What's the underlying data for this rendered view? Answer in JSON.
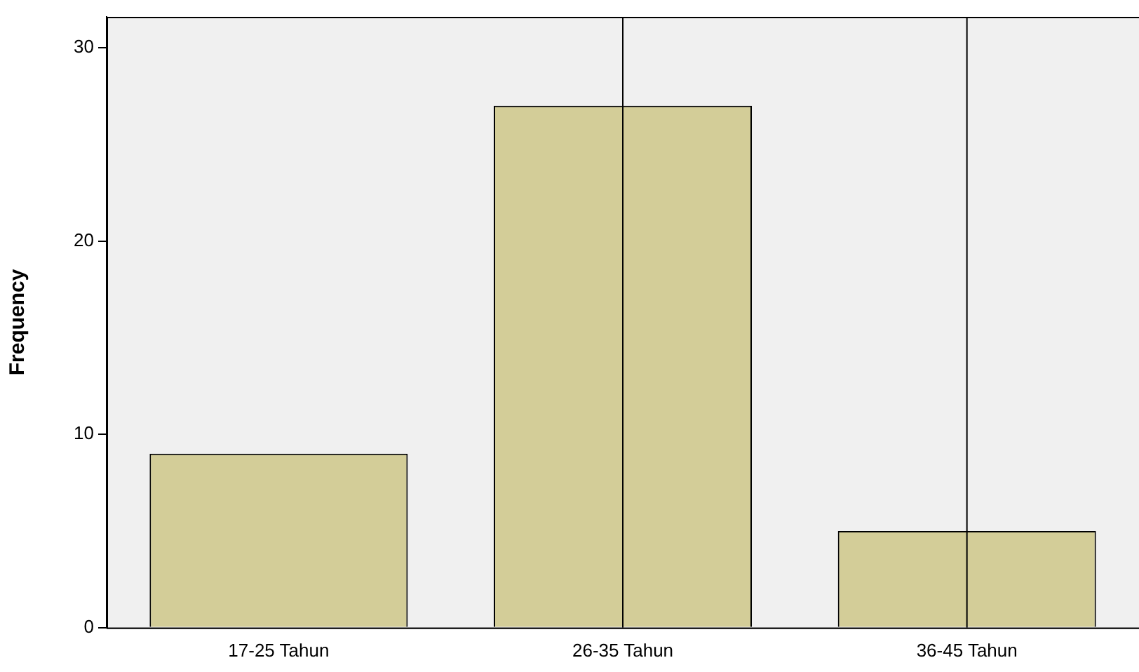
{
  "chart_data": {
    "type": "bar",
    "ylabel": "Frequency",
    "categories": [
      "17-25 Tahun",
      "26-35 Tahun",
      "36-45 Tahun"
    ],
    "values": [
      9,
      27,
      5
    ],
    "color": "#d3cd98",
    "ylim": [
      0,
      31.6
    ],
    "yticks": [
      0,
      10,
      20,
      30
    ],
    "grid": false,
    "legend": false,
    "ref_lines": [
      {
        "axis": "x",
        "value": "26-35 Tahun",
        "color": "#000000"
      },
      {
        "axis": "x",
        "value": "36-45 Tahun",
        "color": "#000000"
      }
    ]
  }
}
